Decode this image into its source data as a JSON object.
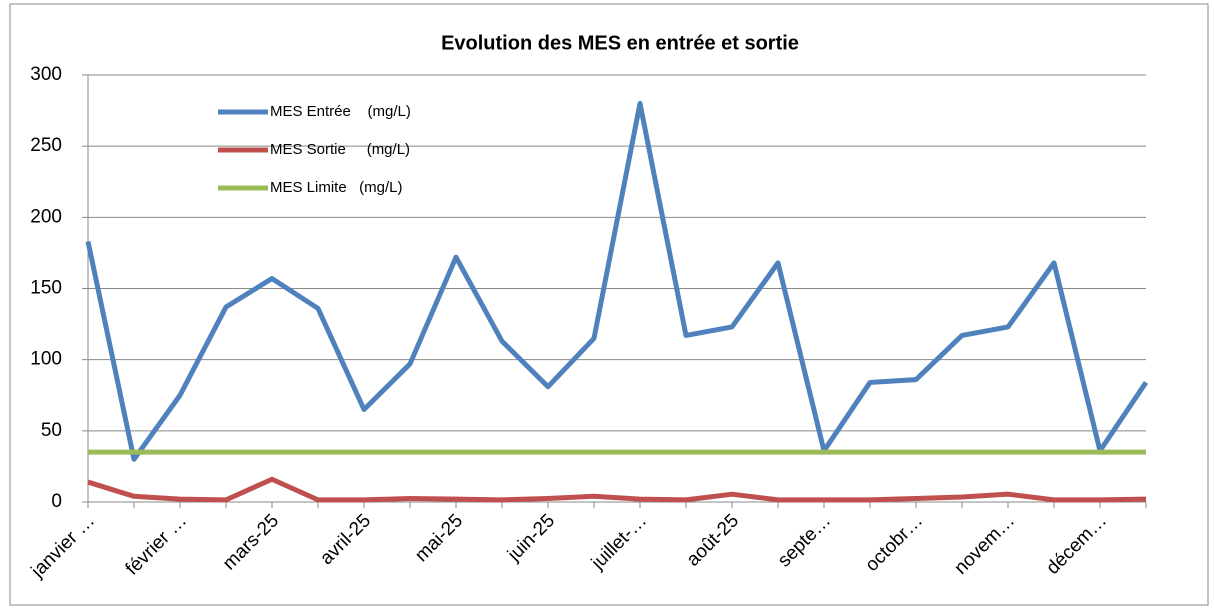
{
  "chart_data": {
    "type": "line",
    "title": "Evolution des MES en entrée et sortie",
    "categories": [
      "janvier …",
      null,
      "février …",
      null,
      "mars-25",
      null,
      "avril-25",
      null,
      "mai-25",
      null,
      "juin-25",
      null,
      "juillet-…",
      null,
      "août-25",
      null,
      "septe…",
      null,
      "octobr…",
      null,
      "novem…",
      null,
      "décem…",
      null
    ],
    "series": [
      {
        "name": "MES Entrée    (mg/L)",
        "color": "#4f81bd",
        "values": [
          183,
          30,
          75,
          137,
          157,
          136,
          65,
          97,
          172,
          113,
          81,
          115,
          280,
          117,
          123,
          168,
          36,
          84,
          86,
          117,
          123,
          168,
          36,
          84
        ]
      },
      {
        "name": "MES Sortie     (mg/L)",
        "color": "#c0504d",
        "values": [
          14,
          4,
          2,
          1.5,
          16,
          1.5,
          1.5,
          2.5,
          2,
          1.5,
          2.5,
          4,
          2,
          1.5,
          5.5,
          1.5,
          1.5,
          1.5,
          2.5,
          3.5,
          5.5,
          1.5,
          1.5,
          2
        ]
      },
      {
        "name": "MES Limite   (mg/L)",
        "color": "#9bbb59",
        "values": [
          35,
          35,
          35,
          35,
          35,
          35,
          35,
          35,
          35,
          35,
          35,
          35,
          35,
          35,
          35,
          35,
          35,
          35,
          35,
          35,
          35,
          35,
          35,
          35
        ]
      }
    ],
    "ylim": [
      0,
      300
    ],
    "yticks": [
      0,
      50,
      100,
      150,
      200,
      250,
      300
    ],
    "grid": true,
    "legend": "top-left"
  }
}
